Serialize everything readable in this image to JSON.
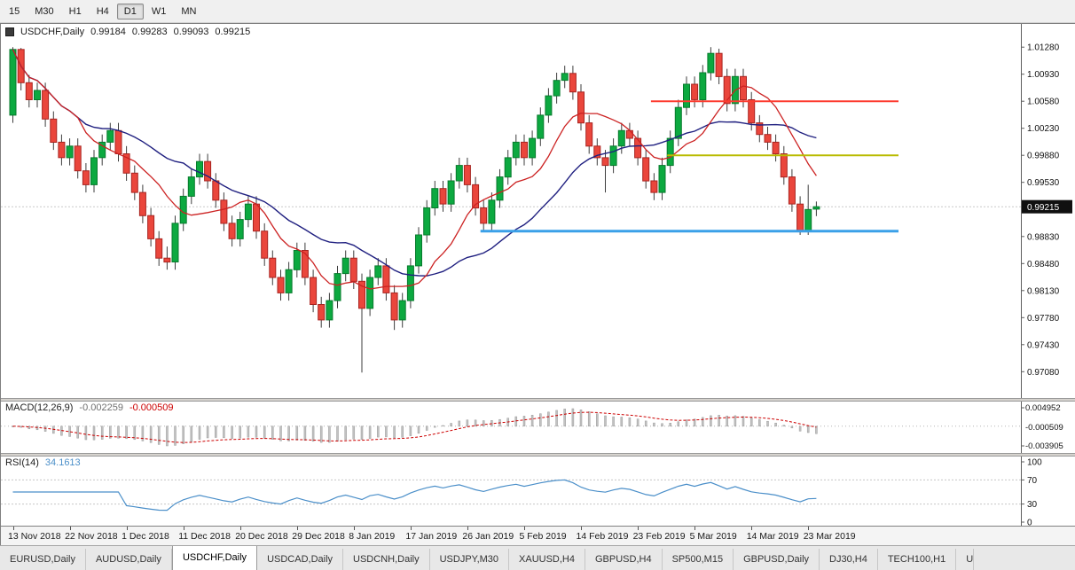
{
  "toolbar": {
    "timeframes": [
      {
        "label": "15",
        "active": false
      },
      {
        "label": "M30",
        "active": false
      },
      {
        "label": "H1",
        "active": false
      },
      {
        "label": "H4",
        "active": false
      },
      {
        "label": "D1",
        "active": true
      },
      {
        "label": "W1",
        "active": false
      },
      {
        "label": "MN",
        "active": false
      }
    ]
  },
  "chart_header": {
    "symbol": "USDCHF,Daily",
    "open": "0.99184",
    "high": "0.99283",
    "low": "0.99093",
    "close": "0.99215"
  },
  "price_axis": {
    "labels": [
      "1.01280",
      "1.00930",
      "1.00580",
      "1.00230",
      "0.99880",
      "0.99530",
      "0.99180",
      "0.98830",
      "0.98480",
      "0.98130",
      "0.97780",
      "0.97430",
      "0.97080"
    ],
    "current_price": "0.99215"
  },
  "chart_data": {
    "type": "candlestick",
    "symbol": "USDCHF",
    "period": "Daily",
    "ylim": [
      0.969,
      1.0142
    ],
    "candles": [
      [
        1.004,
        1.0128,
        1.003,
        1.0125
      ],
      [
        1.0125,
        1.0127,
        1.0072,
        1.0082
      ],
      [
        1.0082,
        1.0092,
        1.005,
        1.006
      ],
      [
        1.006,
        1.0082,
        1.005,
        1.0072
      ],
      [
        1.0072,
        1.0082,
        1.0025,
        1.0035
      ],
      [
        1.0035,
        1.0045,
        0.9995,
        1.0005
      ],
      [
        1.0005,
        1.0015,
        0.9975,
        0.9985
      ],
      [
        0.9985,
        1.001,
        0.9975,
        1.0
      ],
      [
        1.0,
        1.001,
        0.9958,
        0.9968
      ],
      [
        0.9968,
        0.9978,
        0.994,
        0.995
      ],
      [
        0.995,
        0.9995,
        0.994,
        0.9985
      ],
      [
        0.9985,
        1.0015,
        0.9975,
        1.0005
      ],
      [
        1.0005,
        1.003,
        0.9995,
        1.002
      ],
      [
        1.002,
        1.003,
        0.998,
        0.999
      ],
      [
        0.999,
        1.0,
        0.9955,
        0.9965
      ],
      [
        0.9965,
        0.9975,
        0.993,
        0.994
      ],
      [
        0.994,
        0.995,
        0.99,
        0.991
      ],
      [
        0.991,
        0.992,
        0.987,
        0.988
      ],
      [
        0.988,
        0.989,
        0.9845,
        0.9855
      ],
      [
        0.9855,
        0.987,
        0.984,
        0.985
      ],
      [
        0.985,
        0.991,
        0.984,
        0.99
      ],
      [
        0.99,
        0.9945,
        0.989,
        0.9935
      ],
      [
        0.9935,
        0.997,
        0.9925,
        0.996
      ],
      [
        0.996,
        0.999,
        0.995,
        0.998
      ],
      [
        0.998,
        0.999,
        0.9945,
        0.9955
      ],
      [
        0.9955,
        0.9965,
        0.992,
        0.993
      ],
      [
        0.993,
        0.994,
        0.989,
        0.99
      ],
      [
        0.99,
        0.991,
        0.987,
        0.988
      ],
      [
        0.988,
        0.9915,
        0.987,
        0.9905
      ],
      [
        0.9905,
        0.9935,
        0.9895,
        0.9925
      ],
      [
        0.9925,
        0.9935,
        0.988,
        0.989
      ],
      [
        0.989,
        0.99,
        0.9845,
        0.9855
      ],
      [
        0.9855,
        0.9865,
        0.982,
        0.983
      ],
      [
        0.983,
        0.984,
        0.98,
        0.981
      ],
      [
        0.981,
        0.985,
        0.98,
        0.984
      ],
      [
        0.984,
        0.9875,
        0.983,
        0.9865
      ],
      [
        0.9865,
        0.9875,
        0.982,
        0.983
      ],
      [
        0.983,
        0.984,
        0.9785,
        0.9795
      ],
      [
        0.9795,
        0.9805,
        0.9765,
        0.9775
      ],
      [
        0.9775,
        0.981,
        0.9765,
        0.98
      ],
      [
        0.98,
        0.9845,
        0.979,
        0.9835
      ],
      [
        0.9835,
        0.9865,
        0.9825,
        0.9855
      ],
      [
        0.9855,
        0.9865,
        0.9815,
        0.9825
      ],
      [
        0.9825,
        0.9835,
        0.9707,
        0.979
      ],
      [
        0.979,
        0.984,
        0.978,
        0.983
      ],
      [
        0.983,
        0.9855,
        0.982,
        0.9845
      ],
      [
        0.9845,
        0.9855,
        0.98,
        0.981
      ],
      [
        0.981,
        0.982,
        0.9762,
        0.9775
      ],
      [
        0.9775,
        0.981,
        0.9765,
        0.98
      ],
      [
        0.98,
        0.9855,
        0.979,
        0.9845
      ],
      [
        0.9845,
        0.9895,
        0.9835,
        0.9885
      ],
      [
        0.9885,
        0.993,
        0.9875,
        0.992
      ],
      [
        0.992,
        0.9955,
        0.991,
        0.9945
      ],
      [
        0.9945,
        0.9955,
        0.9915,
        0.9925
      ],
      [
        0.9925,
        0.9965,
        0.9915,
        0.9955
      ],
      [
        0.9955,
        0.9985,
        0.9945,
        0.9975
      ],
      [
        0.9975,
        0.9985,
        0.994,
        0.995
      ],
      [
        0.995,
        0.996,
        0.991,
        0.992
      ],
      [
        0.992,
        0.993,
        0.989,
        0.99
      ],
      [
        0.99,
        0.994,
        0.989,
        0.993
      ],
      [
        0.993,
        0.997,
        0.992,
        0.996
      ],
      [
        0.996,
        0.9995,
        0.995,
        0.9985
      ],
      [
        0.9985,
        1.0015,
        0.9975,
        1.0005
      ],
      [
        1.0005,
        1.0015,
        0.9975,
        0.9985
      ],
      [
        0.9985,
        1.002,
        0.9975,
        1.001
      ],
      [
        1.001,
        1.005,
        1.0,
        1.004
      ],
      [
        1.004,
        1.0075,
        1.003,
        1.0065
      ],
      [
        1.0065,
        1.0095,
        1.0055,
        1.0085
      ],
      [
        1.0085,
        1.0104,
        1.0075,
        1.0094
      ],
      [
        1.0094,
        1.0104,
        1.006,
        1.007
      ],
      [
        1.007,
        1.008,
        1.002,
        1.003
      ],
      [
        1.003,
        1.004,
        0.999,
        1.0
      ],
      [
        1.0,
        1.001,
        0.9975,
        0.9985
      ],
      [
        0.9985,
        0.9995,
        0.994,
        0.9975
      ],
      [
        0.9975,
        1.001,
        0.9965,
        1.0
      ],
      [
        1.0,
        1.003,
        0.999,
        1.002
      ],
      [
        1.002,
        1.003,
        1.0,
        1.001
      ],
      [
        1.001,
        1.002,
        0.9975,
        0.9985
      ],
      [
        0.9985,
        0.9995,
        0.9945,
        0.9955
      ],
      [
        0.9955,
        0.9965,
        0.993,
        0.994
      ],
      [
        0.994,
        0.9985,
        0.993,
        0.9975
      ],
      [
        0.9975,
        1.002,
        0.9965,
        1.001
      ],
      [
        1.001,
        1.006,
        1.0,
        1.005
      ],
      [
        1.005,
        1.009,
        1.004,
        1.008
      ],
      [
        1.008,
        1.009,
        1.005,
        1.006
      ],
      [
        1.006,
        1.0105,
        1.005,
        1.0095
      ],
      [
        1.0095,
        1.0128,
        1.0085,
        1.012
      ],
      [
        1.012,
        1.0126,
        1.008,
        1.009
      ],
      [
        1.009,
        1.01,
        1.0045,
        1.0055
      ],
      [
        1.0055,
        1.01,
        1.0045,
        1.009
      ],
      [
        1.009,
        1.01,
        1.005,
        1.006
      ],
      [
        1.006,
        1.007,
        1.002,
        1.003
      ],
      [
        1.003,
        1.004,
        1.0005,
        1.0015
      ],
      [
        1.0015,
        1.0025,
        0.9995,
        1.0005
      ],
      [
        1.0005,
        1.0015,
        0.998,
        0.999
      ],
      [
        0.999,
        1.0,
        0.995,
        0.996
      ],
      [
        0.996,
        0.997,
        0.9915,
        0.9925
      ],
      [
        0.9925,
        0.9935,
        0.9885,
        0.989
      ],
      [
        0.989,
        0.995,
        0.9885,
        0.9918
      ],
      [
        0.99184,
        0.99283,
        0.99093,
        0.99215
      ]
    ],
    "date_ticks": [
      {
        "bar": 0,
        "label": "13 Nov 2018"
      },
      {
        "bar": 7,
        "label": "22 Nov 2018"
      },
      {
        "bar": 14,
        "label": "1 Dec 2018"
      },
      {
        "bar": 21,
        "label": "11 Dec 2018"
      },
      {
        "bar": 28,
        "label": "20 Dec 2018"
      },
      {
        "bar": 35,
        "label": "29 Dec 2018"
      },
      {
        "bar": 42,
        "label": "8 Jan 2019"
      },
      {
        "bar": 49,
        "label": "17 Jan 2019"
      },
      {
        "bar": 56,
        "label": "26 Jan 2019"
      },
      {
        "bar": 63,
        "label": "5 Feb 2019"
      },
      {
        "bar": 70,
        "label": "14 Feb 2019"
      },
      {
        "bar": 77,
        "label": "23 Feb 2019"
      },
      {
        "bar": 84,
        "label": "5 Mar 2019"
      },
      {
        "bar": 91,
        "label": "14 Mar 2019"
      },
      {
        "bar": 98,
        "label": "23 Mar 2019"
      }
    ],
    "overlays": {
      "ma_fast": {
        "type": "sma",
        "period": 9,
        "color": "#cc2222"
      },
      "ma_slow": {
        "type": "sma",
        "period": 22,
        "color": "#202080"
      },
      "levels": [
        {
          "name": "resistance-red",
          "value": 1.0058,
          "from_bar": 79,
          "color": "#fd3c30",
          "width": 2
        },
        {
          "name": "support-olive",
          "value": 0.9988,
          "from_bar": 81,
          "color": "#b9bb00",
          "width": 2
        },
        {
          "name": "support-blue",
          "value": 0.989,
          "from_bar": 58,
          "color": "#3aa0e8",
          "width": 3
        }
      ]
    }
  },
  "macd": {
    "title": "MACD(12,26,9)",
    "value": "-0.002259",
    "signal_value": "-0.000509",
    "axis_labels": [
      "0.004952",
      "-0.003905"
    ],
    "fast": 12,
    "slow": 26,
    "signal": 9,
    "hist_color": "#c2c2c2",
    "hist_border": "#9b9b9b",
    "signal_color": "#cc0000"
  },
  "rsi": {
    "title": "RSI(14)",
    "value": "34.1613",
    "period": 14,
    "axis_labels": [
      "100",
      "70",
      "30",
      "0"
    ],
    "levels": [
      70,
      30
    ],
    "line_color": "#4b8fc9"
  },
  "tabs": {
    "items": [
      {
        "label": "EURUSD,Daily",
        "active": false
      },
      {
        "label": "AUDUSD,Daily",
        "active": false
      },
      {
        "label": "USDCHF,Daily",
        "active": true
      },
      {
        "label": "USDCAD,Daily",
        "active": false
      },
      {
        "label": "USDCNH,Daily",
        "active": false
      },
      {
        "label": "USDJPY,M30",
        "active": false
      },
      {
        "label": "XAUUSD,H4",
        "active": false
      },
      {
        "label": "GBPUSD,H4",
        "active": false
      },
      {
        "label": "SP500,M15",
        "active": false
      },
      {
        "label": "GBPUSD,Daily",
        "active": false
      },
      {
        "label": "DJ30,H4",
        "active": false
      },
      {
        "label": "TECH100,H1",
        "active": false
      },
      {
        "label": "U",
        "active": false,
        "partial": true
      }
    ]
  },
  "colors": {
    "bull": "#0ca940",
    "bull_border": "#077a2c",
    "bear": "#ea463c",
    "bear_border": "#a82420",
    "wick": "#3d3d3d",
    "axis_text": "#111111",
    "badge_bg": "#101010",
    "badge_text": "#ffffff"
  }
}
